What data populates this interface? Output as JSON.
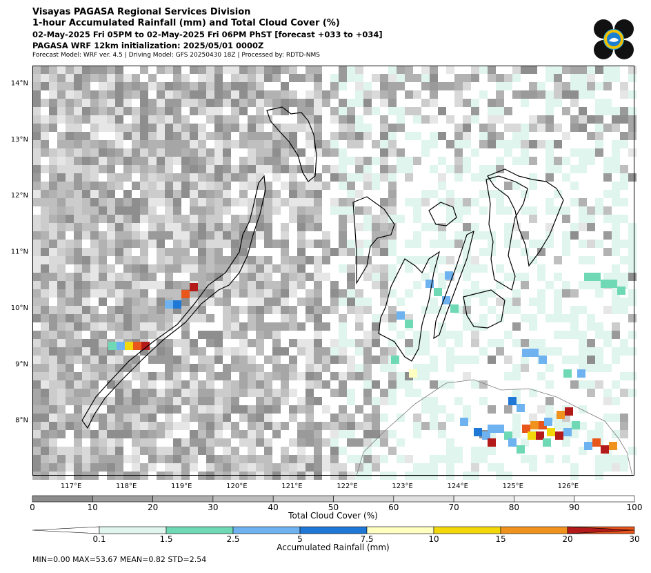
{
  "header": {
    "line1": "Visayas PAGASA Regional Services Division",
    "line2": "1-hour Accumulated Rainfall (mm) and Total Cloud Cover (%)",
    "line3": "02-May-2025 Fri 05PM to 02-May-2025 Fri 06PM PhST [forecast +033 to +034]",
    "line4": "PAGASA WRF 12km initialization: 2025/05/01 0000Z",
    "line5": "Forecast Model: WRF ver. 4.5 | Driving Model: GFS 20250430 18Z | Processed by: RDTD-NMS"
  },
  "map": {
    "lon_range": [
      116.3,
      127.2
    ],
    "lat_range": [
      7.0,
      14.3
    ],
    "lon_labels": [
      "117°E",
      "118°E",
      "119°E",
      "120°E",
      "121°E",
      "122°E",
      "123°E",
      "124°E",
      "125°E",
      "126°E"
    ],
    "lat_labels": [
      "14°N",
      "13°N",
      "12°N",
      "11°N",
      "10°N",
      "9°N",
      "8°N"
    ]
  },
  "cloud_colorbar": {
    "title": "Total Cloud Cover (%)",
    "ticks": [
      "0",
      "10",
      "20",
      "30",
      "40",
      "50",
      "60",
      "70",
      "80",
      "90",
      "100"
    ],
    "colors": [
      "#8c8c8c",
      "#9e9e9e",
      "#adadad",
      "#bdbdbd",
      "#c9c9c9",
      "#d6d6d6",
      "#e0e0e0",
      "#ebebeb",
      "#f3f3f3",
      "#ffffff"
    ]
  },
  "rain_colorbar": {
    "title": "Accumulated Rainfall (mm)",
    "ticks": [
      "0.1",
      "1.5",
      "2.5",
      "5",
      "7.5",
      "10",
      "15",
      "20",
      "30"
    ],
    "colors": [
      "#ffffff",
      "#e0f5ee",
      "#6fd8b4",
      "#6eb3f0",
      "#1f77d6",
      "#ffffc0",
      "#f2d80a",
      "#f0921e",
      "#e8561c",
      "#b41a1a"
    ]
  },
  "stats": "MIN=0.00   MAX=53.67   MEAN=0.82   STD=2.54"
}
